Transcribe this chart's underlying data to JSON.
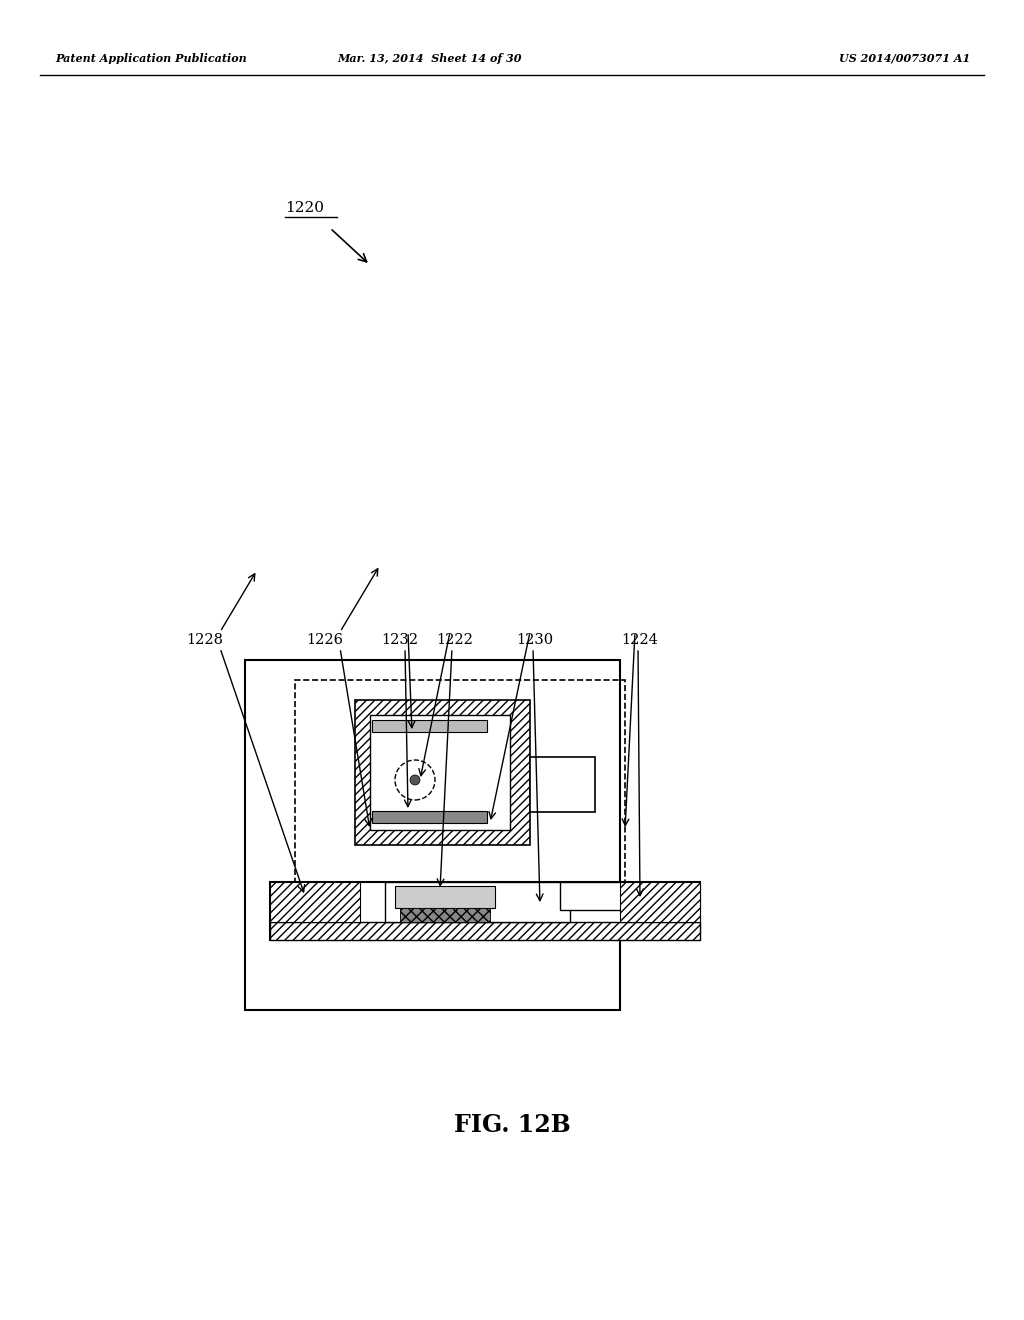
{
  "bg_color": "#ffffff",
  "header_left": "Patent Application Publication",
  "header_mid": "Mar. 13, 2014  Sheet 14 of 30",
  "header_right": "US 2014/0073071 A1",
  "fig_label": "FIG. 12B",
  "ref_label": "1220"
}
